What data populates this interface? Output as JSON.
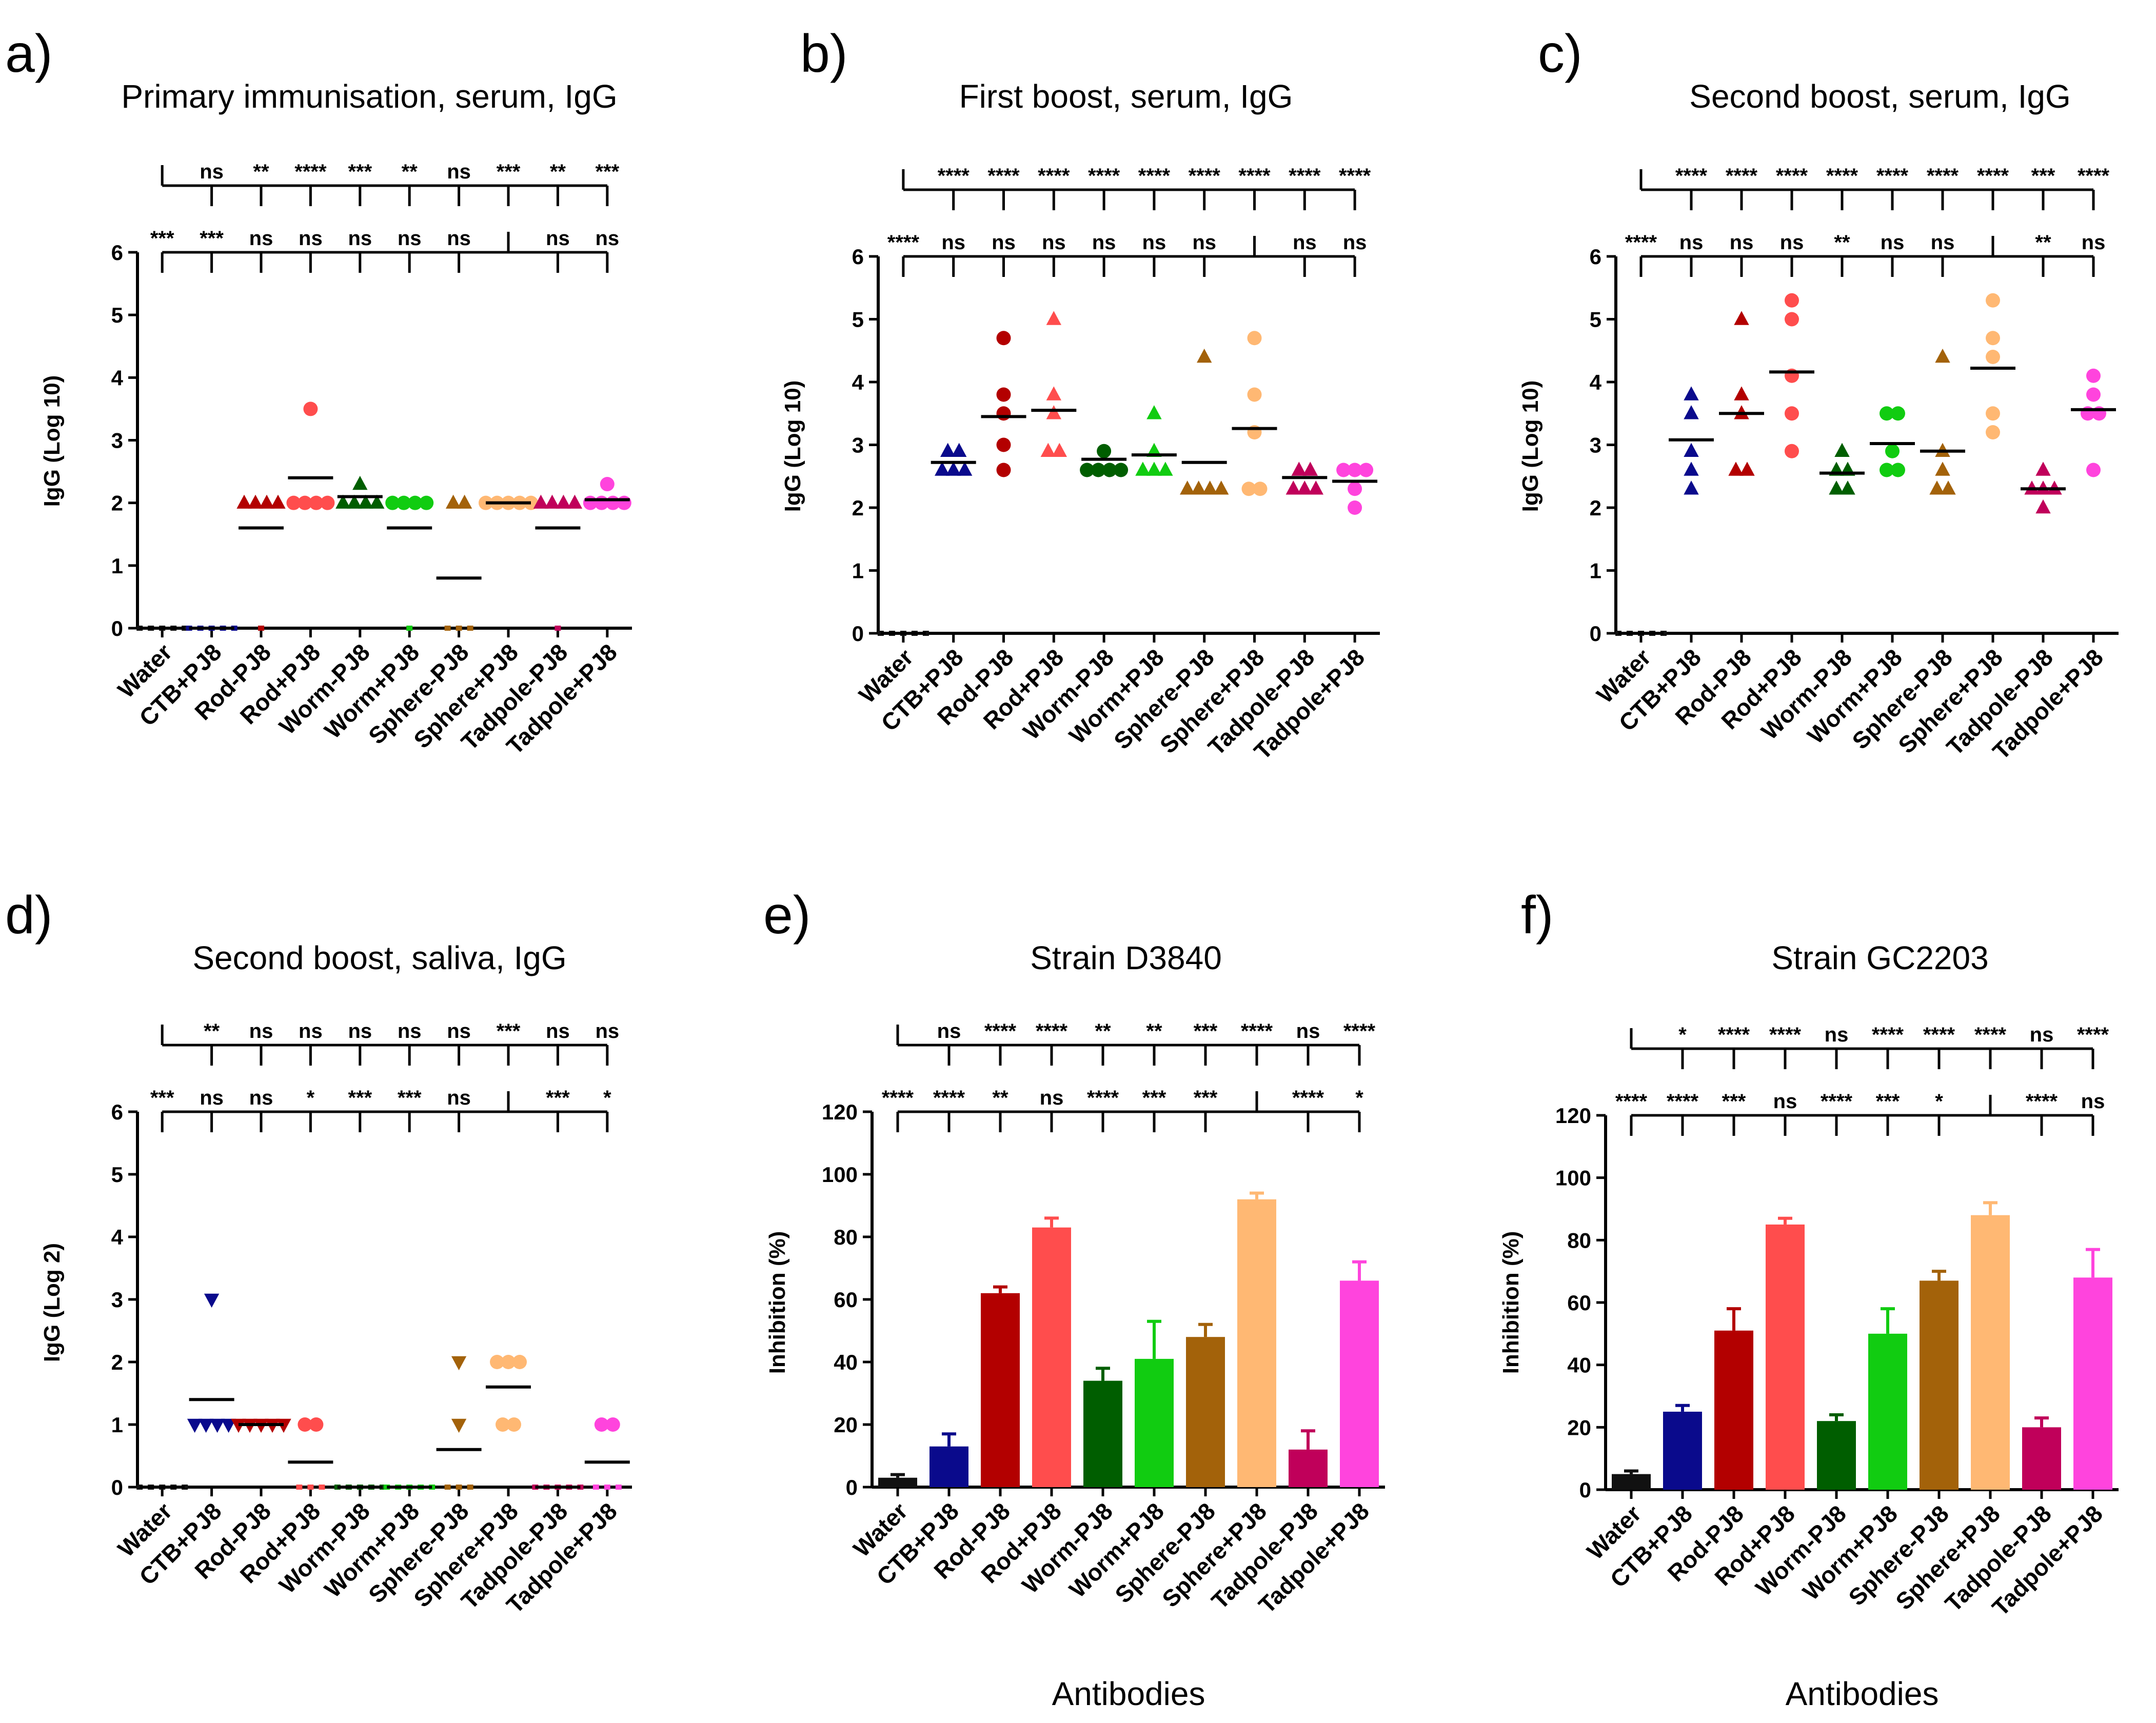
{
  "colors": {
    "Water": "#111111",
    "CTB+PJ8": "#0a0a8c",
    "Rod-PJ8": "#b30000",
    "Rod+PJ8": "#ff4d4d",
    "Worm-PJ8": "#005e00",
    "Worm+PJ8": "#11cc11",
    "Sphere-PJ8": "#a3620a",
    "Sphere+PJ8": "#ffb873",
    "Tadpole-PJ8": "#c0005a",
    "Tadpole+PJ8": "#ff44dd"
  },
  "chart_data": [
    {
      "id": "a",
      "panel_label": "a)",
      "type": "scatter",
      "title": "Primary immunisation, serum, IgG",
      "ylabel": "IgG (Log 10)",
      "xlabel": "",
      "ylim": [
        0,
        6
      ],
      "yticks": [
        "0",
        "1",
        "2",
        "3",
        "4",
        "5",
        "6"
      ],
      "categories": [
        "Water",
        "CTB+PJ8",
        "Rod-PJ8",
        "Rod+PJ8",
        "Worm-PJ8",
        "Worm+PJ8",
        "Sphere-PJ8",
        "Sphere+PJ8",
        "Tadpole-PJ8",
        "Tadpole+PJ8"
      ],
      "series": [
        {
          "name": "Water",
          "marker": "circle",
          "values": [
            0,
            0,
            0,
            0,
            0
          ],
          "mean": 0
        },
        {
          "name": "CTB+PJ8",
          "marker": "triangle-down",
          "values": [
            0,
            0,
            0,
            0,
            0
          ],
          "mean": 0
        },
        {
          "name": "Rod-PJ8",
          "marker": "triangle",
          "values": [
            2,
            2,
            2,
            2,
            0
          ],
          "mean": 1.6
        },
        {
          "name": "Rod+PJ8",
          "marker": "circle",
          "values": [
            3.5,
            2,
            2,
            2,
            2
          ],
          "mean": 2.4
        },
        {
          "name": "Worm-PJ8",
          "marker": "triangle",
          "values": [
            2.3,
            2,
            2,
            2,
            2
          ],
          "mean": 2.1
        },
        {
          "name": "Worm+PJ8",
          "marker": "circle",
          "values": [
            2,
            2,
            2,
            2,
            0
          ],
          "mean": 1.6
        },
        {
          "name": "Sphere-PJ8",
          "marker": "triangle",
          "values": [
            2,
            2,
            0,
            0,
            0
          ],
          "mean": 0.8
        },
        {
          "name": "Sphere+PJ8",
          "marker": "circle",
          "values": [
            2,
            2,
            2,
            2,
            2
          ],
          "mean": 2
        },
        {
          "name": "Tadpole-PJ8",
          "marker": "triangle",
          "values": [
            2,
            2,
            2,
            2,
            0
          ],
          "mean": 1.6
        },
        {
          "name": "Tadpole+PJ8",
          "marker": "circle",
          "values": [
            2.3,
            2,
            2,
            2,
            2
          ],
          "mean": 2.05
        }
      ],
      "significance_top": [
        "ns",
        "**",
        "****",
        "***",
        "**",
        "ns",
        "***",
        "**",
        "***"
      ],
      "significance_bottom": [
        "***",
        "***",
        "ns",
        "ns",
        "ns",
        "ns",
        "ns",
        "",
        "ns",
        "ns"
      ]
    },
    {
      "id": "b",
      "panel_label": "b)",
      "type": "scatter",
      "title": "First boost, serum, IgG",
      "ylabel": "IgG (Log 10)",
      "xlabel": "",
      "ylim": [
        0,
        6
      ],
      "yticks": [
        "0",
        "1",
        "2",
        "3",
        "4",
        "5",
        "6"
      ],
      "categories": [
        "Water",
        "CTB+PJ8",
        "Rod-PJ8",
        "Rod+PJ8",
        "Worm-PJ8",
        "Worm+PJ8",
        "Sphere-PJ8",
        "Sphere+PJ8",
        "Tadpole-PJ8",
        "Tadpole+PJ8"
      ],
      "series": [
        {
          "name": "Water",
          "marker": "circle",
          "values": [
            0,
            0,
            0,
            0,
            0
          ],
          "mean": 0
        },
        {
          "name": "CTB+PJ8",
          "marker": "triangle",
          "values": [
            2.9,
            2.9,
            2.6,
            2.6,
            2.6
          ],
          "mean": 2.72
        },
        {
          "name": "Rod-PJ8",
          "marker": "circle",
          "values": [
            4.7,
            3.8,
            3.5,
            3,
            2.6
          ],
          "mean": 3.45
        },
        {
          "name": "Rod+PJ8",
          "marker": "triangle",
          "values": [
            5,
            3.8,
            3.5,
            2.9,
            2.9
          ],
          "mean": 3.55
        },
        {
          "name": "Worm-PJ8",
          "marker": "circle",
          "values": [
            2.9,
            2.6,
            2.6,
            2.6,
            2.6
          ],
          "mean": 2.77
        },
        {
          "name": "Worm+PJ8",
          "marker": "triangle",
          "values": [
            3.5,
            2.9,
            2.6,
            2.6,
            2.6
          ],
          "mean": 2.84
        },
        {
          "name": "Sphere-PJ8",
          "marker": "triangle",
          "values": [
            4.4,
            2.3,
            2.3,
            2.3,
            2.3
          ],
          "mean": 2.72
        },
        {
          "name": "Sphere+PJ8",
          "marker": "circle",
          "values": [
            4.7,
            3.8,
            3.2,
            2.3,
            2.3
          ],
          "mean": 3.26
        },
        {
          "name": "Tadpole-PJ8",
          "marker": "triangle",
          "values": [
            2.6,
            2.6,
            2.3,
            2.3,
            2.3
          ],
          "mean": 2.48
        },
        {
          "name": "Tadpole+PJ8",
          "marker": "circle",
          "values": [
            2.6,
            2.6,
            2.6,
            2.3,
            2
          ],
          "mean": 2.42
        }
      ],
      "significance_top": [
        "****",
        "****",
        "****",
        "****",
        "****",
        "****",
        "****",
        "****",
        "****"
      ],
      "significance_bottom": [
        "****",
        "ns",
        "ns",
        "ns",
        "ns",
        "ns",
        "ns",
        "",
        "ns",
        "ns"
      ]
    },
    {
      "id": "c",
      "panel_label": "c)",
      "type": "scatter",
      "title": "Second boost, serum, IgG",
      "ylabel": "IgG (Log 10)",
      "xlabel": "",
      "ylim": [
        0,
        6
      ],
      "yticks": [
        "0",
        "1",
        "2",
        "3",
        "4",
        "5",
        "6"
      ],
      "categories": [
        "Water",
        "CTB+PJ8",
        "Rod-PJ8",
        "Rod+PJ8",
        "Worm-PJ8",
        "Worm+PJ8",
        "Sphere-PJ8",
        "Sphere+PJ8",
        "Tadpole-PJ8",
        "Tadpole+PJ8"
      ],
      "series": [
        {
          "name": "Water",
          "marker": "circle",
          "values": [
            0,
            0,
            0,
            0,
            0
          ],
          "mean": 0
        },
        {
          "name": "CTB+PJ8",
          "marker": "triangle",
          "values": [
            3.8,
            3.5,
            2.9,
            2.6,
            2.3
          ],
          "mean": 3.08
        },
        {
          "name": "Rod-PJ8",
          "marker": "triangle",
          "values": [
            5,
            3.8,
            3.5,
            2.6,
            2.6
          ],
          "mean": 3.5
        },
        {
          "name": "Rod+PJ8",
          "marker": "circle",
          "values": [
            5.3,
            5,
            4.1,
            3.5,
            2.9
          ],
          "mean": 4.16
        },
        {
          "name": "Worm-PJ8",
          "marker": "triangle",
          "values": [
            2.9,
            2.6,
            2.6,
            2.3,
            2.3
          ],
          "mean": 2.55
        },
        {
          "name": "Worm+PJ8",
          "marker": "circle",
          "values": [
            3.5,
            3.5,
            2.9,
            2.6,
            2.6
          ],
          "mean": 3.02
        },
        {
          "name": "Sphere-PJ8",
          "marker": "triangle",
          "values": [
            4.4,
            2.9,
            2.6,
            2.3,
            2.3
          ],
          "mean": 2.9
        },
        {
          "name": "Sphere+PJ8",
          "marker": "circle",
          "values": [
            5.3,
            4.7,
            4.4,
            3.5,
            3.2
          ],
          "mean": 4.22
        },
        {
          "name": "Tadpole-PJ8",
          "marker": "triangle",
          "values": [
            2.6,
            2.3,
            2.3,
            2.3,
            2
          ],
          "mean": 2.3
        },
        {
          "name": "Tadpole+PJ8",
          "marker": "circle",
          "values": [
            4.1,
            3.8,
            3.5,
            3.5,
            2.6
          ],
          "mean": 3.56
        }
      ],
      "significance_top": [
        "****",
        "****",
        "****",
        "****",
        "****",
        "****",
        "****",
        "***",
        "****"
      ],
      "significance_bottom": [
        "****",
        "ns",
        "ns",
        "ns",
        "**",
        "ns",
        "ns",
        "",
        "**",
        "ns"
      ]
    },
    {
      "id": "d",
      "panel_label": "d)",
      "type": "scatter",
      "title": "Second boost, saliva, IgG",
      "ylabel": "IgG (Log 2)",
      "xlabel": "",
      "ylim": [
        0,
        6
      ],
      "yticks": [
        "0",
        "1",
        "2",
        "3",
        "4",
        "5",
        "6"
      ],
      "categories": [
        "Water",
        "CTB+PJ8",
        "Rod-PJ8",
        "Rod+PJ8",
        "Worm-PJ8",
        "Worm+PJ8",
        "Sphere-PJ8",
        "Sphere+PJ8",
        "Tadpole-PJ8",
        "Tadpole+PJ8"
      ],
      "series": [
        {
          "name": "Water",
          "marker": "triangle-down",
          "values": [
            0,
            0,
            0,
            0,
            0
          ],
          "mean": 0
        },
        {
          "name": "CTB+PJ8",
          "marker": "triangle-down",
          "values": [
            3,
            1,
            1,
            1,
            1
          ],
          "mean": 1.4
        },
        {
          "name": "Rod-PJ8",
          "marker": "triangle-down",
          "values": [
            1,
            1,
            1,
            1,
            1
          ],
          "mean": 1
        },
        {
          "name": "Rod+PJ8",
          "marker": "circle",
          "values": [
            1,
            1,
            0,
            0,
            0
          ],
          "mean": 0.4
        },
        {
          "name": "Worm-PJ8",
          "marker": "triangle-down",
          "values": [
            0,
            0,
            0,
            0,
            0
          ],
          "mean": 0
        },
        {
          "name": "Worm+PJ8",
          "marker": "circle",
          "values": [
            0,
            0,
            0,
            0,
            0
          ],
          "mean": 0
        },
        {
          "name": "Sphere-PJ8",
          "marker": "triangle-down",
          "values": [
            2,
            1,
            0,
            0,
            0
          ],
          "mean": 0.6
        },
        {
          "name": "Sphere+PJ8",
          "marker": "circle",
          "values": [
            2,
            2,
            2,
            1,
            1
          ],
          "mean": 1.6
        },
        {
          "name": "Tadpole-PJ8",
          "marker": "triangle-down",
          "values": [
            0,
            0,
            0,
            0,
            0
          ],
          "mean": 0
        },
        {
          "name": "Tadpole+PJ8",
          "marker": "circle",
          "values": [
            1,
            1,
            0,
            0,
            0
          ],
          "mean": 0.4
        }
      ],
      "significance_top": [
        "**",
        "ns",
        "ns",
        "ns",
        "ns",
        "ns",
        "***",
        "ns",
        "ns"
      ],
      "significance_bottom": [
        "***",
        "ns",
        "ns",
        "*",
        "***",
        "***",
        "ns",
        "",
        "***",
        "*"
      ]
    },
    {
      "id": "e",
      "panel_label": "e)",
      "type": "bar",
      "title": "Strain D3840",
      "ylabel": "Inhibition (%)",
      "xlabel": "Antibodies",
      "ylim": [
        0,
        120
      ],
      "yticks": [
        "0",
        "20",
        "40",
        "60",
        "80",
        "100",
        "120"
      ],
      "categories": [
        "Water",
        "CTB+PJ8",
        "Rod-PJ8",
        "Rod+PJ8",
        "Worm-PJ8",
        "Worm+PJ8",
        "Sphere-PJ8",
        "Sphere+PJ8",
        "Tadpole-PJ8",
        "Tadpole+PJ8"
      ],
      "values": [
        3,
        13,
        62,
        83,
        34,
        41,
        48,
        92,
        12,
        66
      ],
      "errors": [
        1,
        4,
        2,
        3,
        4,
        12,
        4,
        2,
        6,
        6
      ],
      "significance_top": [
        "ns",
        "****",
        "****",
        "**",
        "**",
        "***",
        "****",
        "ns",
        "****"
      ],
      "significance_bottom": [
        "****",
        "****",
        "**",
        "ns",
        "****",
        "***",
        "***",
        "",
        "****",
        "*"
      ]
    },
    {
      "id": "f",
      "panel_label": "f)",
      "type": "bar",
      "title": "Strain GC2203",
      "ylabel": "Inhibition (%)",
      "xlabel": "Antibodies",
      "ylim": [
        0,
        120
      ],
      "yticks": [
        "0",
        "20",
        "40",
        "60",
        "80",
        "100",
        "120"
      ],
      "categories": [
        "Water",
        "CTB+PJ8",
        "Rod-PJ8",
        "Rod+PJ8",
        "Worm-PJ8",
        "Worm+PJ8",
        "Sphere-PJ8",
        "Sphere+PJ8",
        "Tadpole-PJ8",
        "Tadpole+PJ8"
      ],
      "values": [
        5,
        25,
        51,
        85,
        22,
        50,
        67,
        88,
        20,
        68
      ],
      "errors": [
        1,
        2,
        7,
        2,
        2,
        8,
        3,
        4,
        3,
        9
      ],
      "significance_top": [
        "*",
        "****",
        "****",
        "ns",
        "****",
        "****",
        "****",
        "ns",
        "****"
      ],
      "significance_bottom": [
        "****",
        "****",
        "***",
        "ns",
        "****",
        "***",
        "*",
        "",
        "****",
        "ns"
      ]
    }
  ]
}
